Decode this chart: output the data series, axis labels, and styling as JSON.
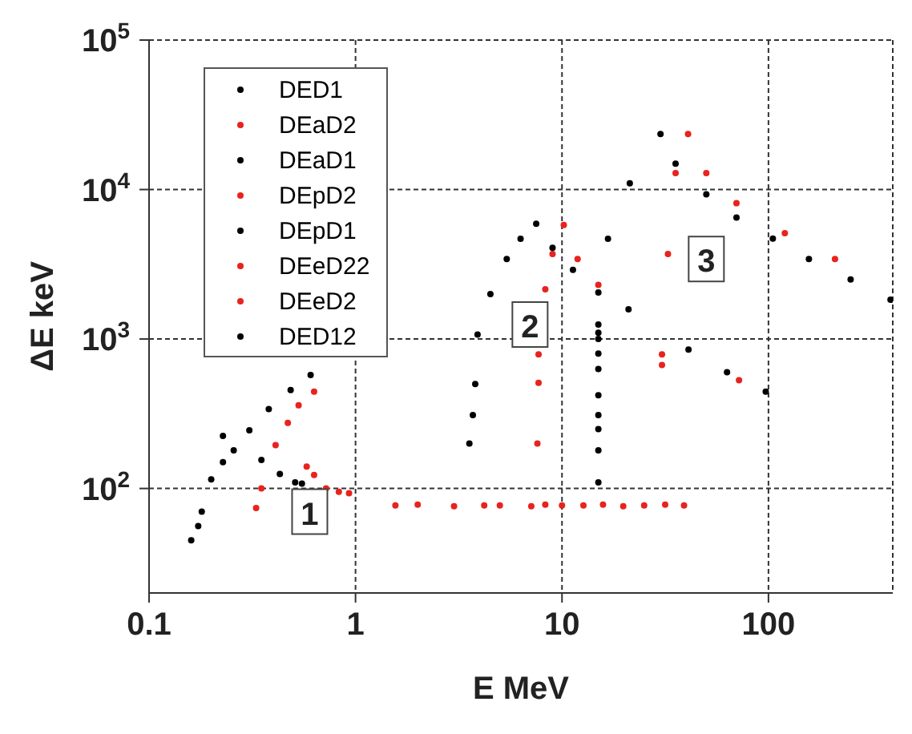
{
  "chart_data": {
    "type": "scatter",
    "xlabel": "E MeV",
    "ylabel": "ΔE keV",
    "log": "xy",
    "grid": true,
    "legend": "top left",
    "marker": "circle",
    "xlim": [
      0.1,
      400
    ],
    "xticks": [
      0.1,
      1,
      10,
      100
    ],
    "ylim": [
      20,
      100000
    ],
    "yticks": [
      {
        "value": 100,
        "label": "10$^{2}$"
      },
      {
        "value": 1000,
        "label": "10$^{3}$"
      },
      {
        "value": 10000,
        "label": "10$^{4}$"
      },
      {
        "value": 100000,
        "label": "10$^{5}$"
      }
    ],
    "annotations": [
      {
        "text": "1",
        "x": 0.6,
        "y": 70
      },
      {
        "text": "2",
        "x": 7,
        "y": 1250
      },
      {
        "text": "3",
        "x": 50,
        "y": 3430
      }
    ],
    "series": [
      {
        "name": "DED1",
        "color": "#000000",
        "x": [
          15,
          16.7,
          21.3,
          30,
          35.5,
          50,
          70,
          105,
          157,
          250,
          390
        ],
        "values": [
          1250,
          4690,
          11000,
          23500,
          14900,
          9300,
          6500,
          4700,
          3430,
          2500,
          1830
        ]
      },
      {
        "name": "DEaD2",
        "color": "#e8231e",
        "x": [
          0.33,
          0.35,
          0.41,
          0.47,
          0.53,
          0.63,
          0.58,
          0.63,
          0.72,
          0.83,
          0.93
        ],
        "values": [
          74,
          100,
          195,
          275,
          360,
          445,
          140,
          123,
          100,
          95,
          93
        ]
      },
      {
        "name": "DEaD1",
        "color": "#000000",
        "x": [
          0.16,
          0.173,
          0.18,
          0.2,
          0.228,
          0.228,
          0.257,
          0.306,
          0.38,
          0.485,
          0.606,
          0.35,
          0.43,
          0.51,
          0.55
        ],
        "values": [
          45,
          56,
          70,
          115,
          150,
          225,
          180,
          245,
          340,
          455,
          575,
          155,
          125,
          110,
          108
        ]
      },
      {
        "name": "DEpD2",
        "color": "#e8231e",
        "x": [
          7.6,
          7.7,
          7.7,
          8.3,
          9,
          10.2,
          11.9,
          15
        ],
        "values": [
          200,
          510,
          790,
          2150,
          3700,
          5800,
          3430,
          2300
        ]
      },
      {
        "name": "DEpD1",
        "color": "#000000",
        "x": [
          3.56,
          3.7,
          3.8,
          3.9,
          4.5,
          5.4,
          6.3,
          7.5,
          9,
          11.3,
          15
        ],
        "values": [
          200,
          310,
          500,
          1070,
          2000,
          3430,
          4690,
          5900,
          4070,
          2900,
          2050
        ]
      },
      {
        "name": "DEeD22",
        "color": "#e8231e",
        "x": [
          1.56,
          2,
          3,
          4.2,
          5,
          7.1,
          8.3,
          10,
          12.7,
          15.8,
          19.8,
          25,
          31.6,
          39
        ],
        "values": [
          77,
          78,
          76,
          77,
          77,
          76,
          78,
          77,
          77,
          78,
          76,
          77,
          78,
          77
        ]
      },
      {
        "name": "DEeD2",
        "color": "#e8231e",
        "x": [
          30.5,
          30.5,
          32.6,
          35.5,
          40.8,
          50,
          70,
          120,
          210,
          72
        ],
        "values": [
          670,
          790,
          3700,
          12900,
          23500,
          12900,
          8100,
          5100,
          3430,
          530
        ]
      },
      {
        "name": "DED12",
        "color": "#000000",
        "x": [
          15,
          15,
          15,
          15,
          15,
          15,
          15,
          15,
          15,
          41,
          63,
          97,
          21
        ],
        "values": [
          1100,
          800,
          1000,
          630,
          420,
          310,
          250,
          180,
          110,
          850,
          600,
          445,
          1580
        ]
      }
    ]
  }
}
